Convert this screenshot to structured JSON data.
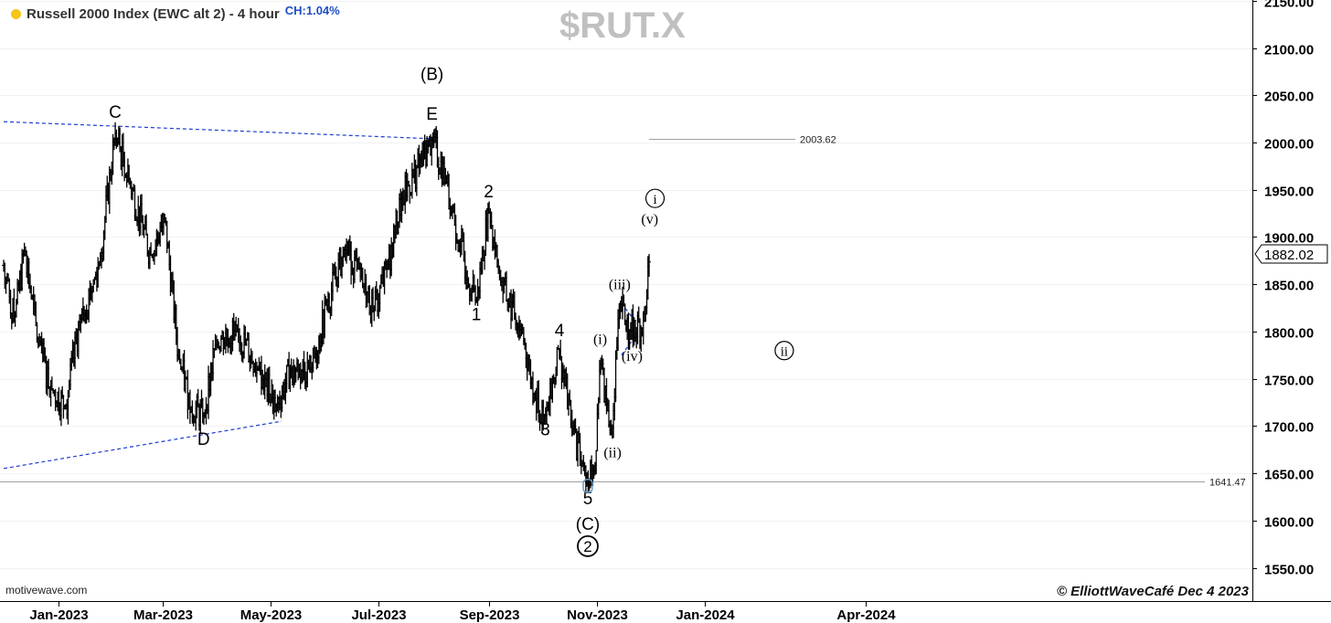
{
  "header": {
    "title": "Russell 2000 Index (EWC alt 2) - 4 hour",
    "change": "CH:1.04%",
    "symbol": "$RUT.X"
  },
  "footer": {
    "source": "motivewave.com",
    "copyright": "© ElliottWaveCafé Dec 4 2023"
  },
  "colors": {
    "bars": "#000000",
    "trendline": "#1f3bd6",
    "level_line": "#a0a0a0",
    "axis_text": "#000000",
    "grid": "#f2f2f2"
  },
  "chart_data": {
    "type": "ohlc",
    "interval": "4 hour",
    "x_tick_labels": [
      "Jan-2023",
      "Mar-2023",
      "May-2023",
      "Jul-2023",
      "Sep-2023",
      "Nov-2023",
      "Jan-2024",
      "Apr-2024"
    ],
    "y_ticks": [
      1550,
      1600,
      1650,
      1700,
      1750,
      1800,
      1850,
      1900,
      1950,
      2000,
      2050,
      2100,
      2150
    ],
    "y_tick_labels": [
      "1550.00",
      "1600.00",
      "1650.00",
      "1700.00",
      "1750.00",
      "1800.00",
      "1850.00",
      "1900.00",
      "1950.00",
      "2000.00",
      "2050.00",
      "2100.00",
      "2150.00"
    ],
    "ylim": [
      1530,
      2170
    ],
    "last_price": "1882.02",
    "levels": [
      {
        "label": "2003.62",
        "value": 2003.62
      },
      {
        "label": "1641.47",
        "value": 1641.47
      }
    ],
    "price_path": [
      [
        "2022-12-01",
        1870
      ],
      [
        "2022-12-07",
        1810
      ],
      [
        "2022-12-13",
        1890
      ],
      [
        "2022-12-20",
        1790
      ],
      [
        "2022-12-28",
        1740
      ],
      [
        "2023-01-05",
        1720
      ],
      [
        "2023-01-13",
        1810
      ],
      [
        "2023-01-24",
        1870
      ],
      [
        "2023-02-02",
        2010
      ],
      [
        "2023-02-10",
        1960
      ],
      [
        "2023-02-22",
        1880
      ],
      [
        "2023-03-02",
        1920
      ],
      [
        "2023-03-10",
        1770
      ],
      [
        "2023-03-17",
        1720
      ],
      [
        "2023-03-24",
        1710
      ],
      [
        "2023-03-31",
        1790
      ],
      [
        "2023-04-12",
        1800
      ],
      [
        "2023-04-24",
        1760
      ],
      [
        "2023-05-04",
        1720
      ],
      [
        "2023-05-12",
        1760
      ],
      [
        "2023-05-24",
        1760
      ],
      [
        "2023-06-02",
        1830
      ],
      [
        "2023-06-12",
        1890
      ],
      [
        "2023-06-22",
        1850
      ],
      [
        "2023-06-28",
        1820
      ],
      [
        "2023-07-06",
        1870
      ],
      [
        "2023-07-14",
        1940
      ],
      [
        "2023-07-31",
        2003.62
      ],
      [
        "2023-08-08",
        1960
      ],
      [
        "2023-08-16",
        1890
      ],
      [
        "2023-08-25",
        1830
      ],
      [
        "2023-09-01",
        1930
      ],
      [
        "2023-09-08",
        1850
      ],
      [
        "2023-09-20",
        1800
      ],
      [
        "2023-09-27",
        1730
      ],
      [
        "2023-10-03",
        1710
      ],
      [
        "2023-10-11",
        1780
      ],
      [
        "2023-10-18",
        1700
      ],
      [
        "2023-10-24",
        1660
      ],
      [
        "2023-10-27",
        1641.47
      ],
      [
        "2023-10-31",
        1655
      ],
      [
        "2023-11-03",
        1770
      ],
      [
        "2023-11-09",
        1690
      ],
      [
        "2023-11-10",
        1700
      ],
      [
        "2023-11-14",
        1830
      ],
      [
        "2023-11-20",
        1800
      ],
      [
        "2023-11-28",
        1810
      ],
      [
        "2023-12-01",
        1882.02
      ]
    ],
    "trendlines": [
      {
        "from": [
          "2022-12-01",
          2022
        ],
        "to": [
          "2023-07-31",
          2004
        ]
      },
      {
        "from": [
          "2022-12-01",
          1655
        ],
        "to": [
          "2023-05-07",
          1705
        ]
      },
      {
        "from": [
          "2023-11-15",
          1830
        ],
        "to": [
          "2023-11-23",
          1810
        ]
      },
      {
        "from": [
          "2023-11-15",
          1775
        ],
        "to": [
          "2023-11-23",
          1795
        ]
      }
    ],
    "wave_labels": [
      {
        "text": "C",
        "date": "2023-02-02",
        "price": 2026,
        "style": "sans"
      },
      {
        "text": "D",
        "date": "2023-03-24",
        "price": 1680,
        "style": "sans"
      },
      {
        "text": "(B)",
        "date": "2023-07-31",
        "price": 2066,
        "style": "sans"
      },
      {
        "text": "E",
        "date": "2023-07-31",
        "price": 2024,
        "style": "sans"
      },
      {
        "text": "1",
        "date": "2023-08-25",
        "price": 1812,
        "style": "sans"
      },
      {
        "text": "2",
        "date": "2023-09-01",
        "price": 1942,
        "style": "sans"
      },
      {
        "text": "3",
        "date": "2023-10-03",
        "price": 1690,
        "style": "sans"
      },
      {
        "text": "4",
        "date": "2023-10-11",
        "price": 1795,
        "style": "sans"
      },
      {
        "text": "5",
        "date": "2023-10-27",
        "price": 1617,
        "style": "sans"
      },
      {
        "text": "(C)",
        "date": "2023-10-27",
        "price": 1590,
        "style": "sans"
      },
      {
        "text": "2",
        "date": "2023-10-27",
        "price": 1568,
        "style": "circled-bold"
      },
      {
        "text": "(i)",
        "date": "2023-11-03",
        "price": 1787,
        "style": "serif"
      },
      {
        "text": "(ii)",
        "date": "2023-11-10",
        "price": 1667,
        "style": "serif"
      },
      {
        "text": "(iii)",
        "date": "2023-11-14",
        "price": 1845,
        "style": "serif"
      },
      {
        "text": "(iv)",
        "date": "2023-11-21",
        "price": 1769,
        "style": "serif"
      },
      {
        "text": "(v)",
        "date": "2023-12-01",
        "price": 1914,
        "style": "serif"
      },
      {
        "text": "i",
        "date": "2023-12-04",
        "price": 1936,
        "style": "circled-serif"
      },
      {
        "text": "ii",
        "date": "2024-02-15",
        "price": 1775,
        "style": "circled-serif"
      }
    ]
  }
}
